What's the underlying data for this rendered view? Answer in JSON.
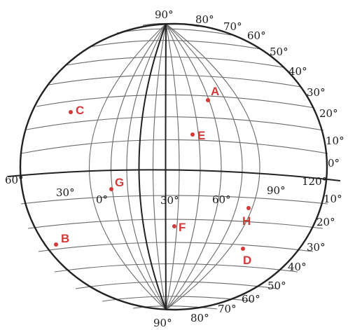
{
  "colors": {
    "outline": "#222222",
    "grid": "#6a6a6a",
    "points": "#d23a3a",
    "text": "#1a1a1a"
  },
  "top_labels": [
    "90°",
    "80°",
    "70°",
    "60°",
    "50°",
    "40°",
    "30°",
    "20°",
    "10°",
    "0°"
  ],
  "bottom_labels": [
    "90°",
    "80°",
    "70°",
    "60°",
    "50°",
    "40°",
    "30°",
    "20°",
    "10°"
  ],
  "equator_labels": [
    "60°",
    "30°",
    "0°",
    "30°",
    "60°",
    "90°",
    "120°"
  ],
  "points": [
    {
      "label": "A"
    },
    {
      "label": "B"
    },
    {
      "label": "C"
    },
    {
      "label": "D"
    },
    {
      "label": "E"
    },
    {
      "label": "F"
    },
    {
      "label": "G"
    },
    {
      "label": "H"
    }
  ]
}
